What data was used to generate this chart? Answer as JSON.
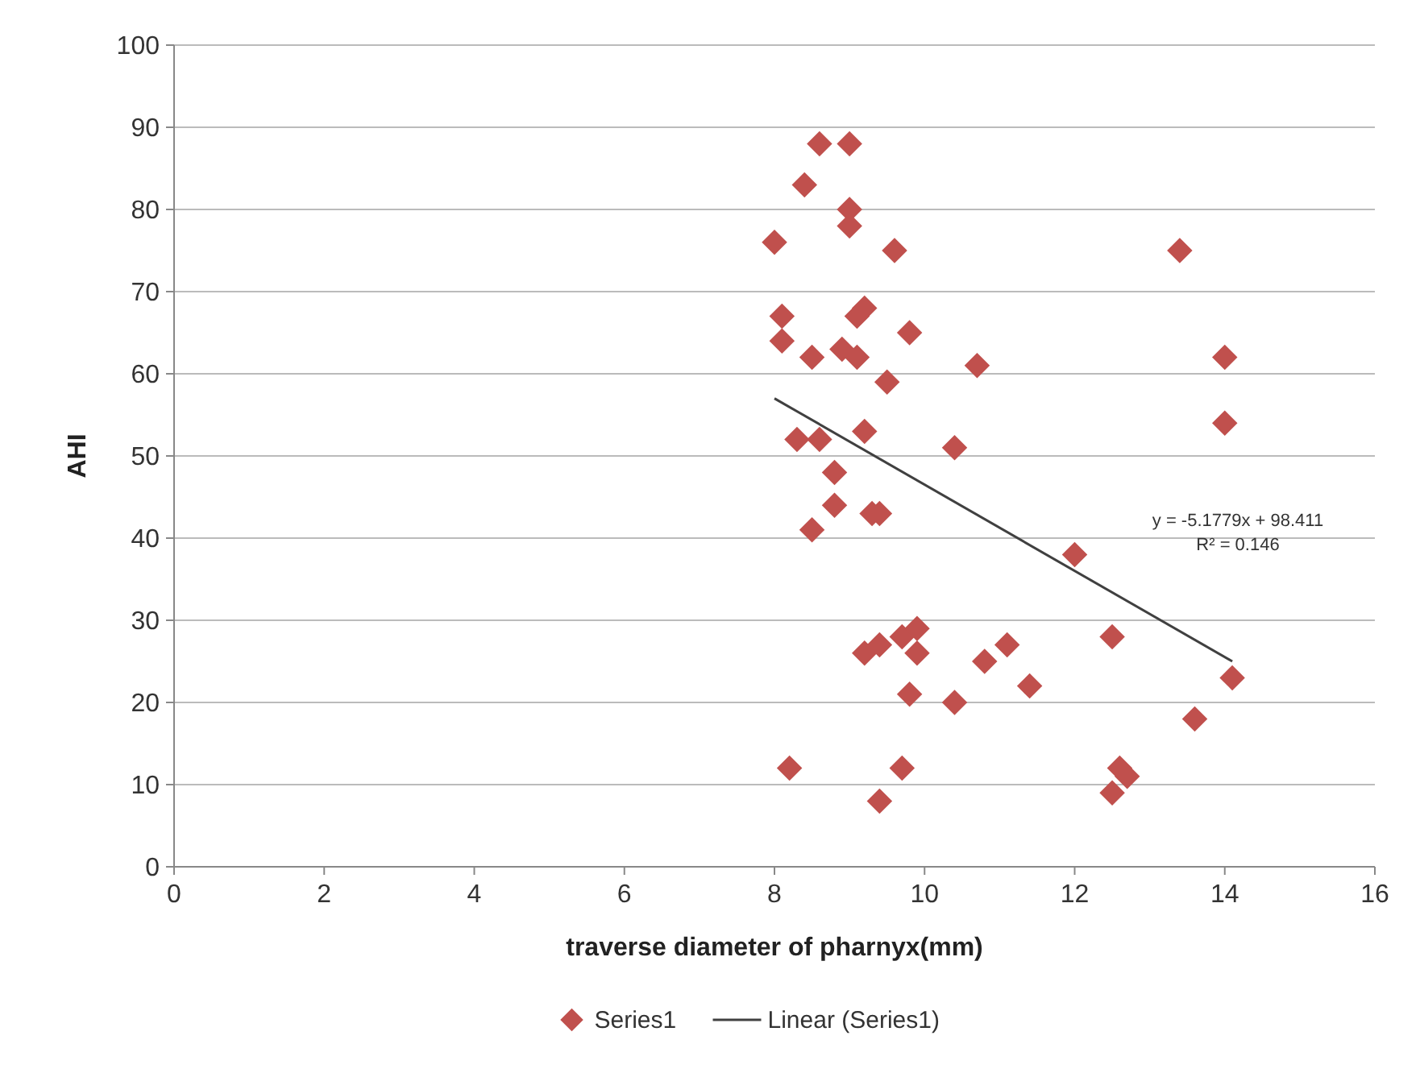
{
  "chart_data": {
    "type": "scatter",
    "xlabel": "traverse diameter of pharnyx(mm)",
    "ylabel": "AHI",
    "xlim": [
      0,
      16
    ],
    "xticks": [
      0,
      2,
      4,
      6,
      8,
      10,
      12,
      14,
      16
    ],
    "ylim": [
      0,
      100
    ],
    "yticks": [
      0,
      10,
      20,
      30,
      40,
      50,
      60,
      70,
      80,
      90,
      100
    ],
    "grid": "y",
    "legend": "bottom",
    "marker": "diamond",
    "series": [
      {
        "name": "Series1",
        "color": "#c0504d",
        "x": [
          8.0,
          8.1,
          8.1,
          8.2,
          8.3,
          8.4,
          8.5,
          8.5,
          8.6,
          8.6,
          8.8,
          8.8,
          8.9,
          9.0,
          9.0,
          9.0,
          9.1,
          9.1,
          9.2,
          9.2,
          9.2,
          9.3,
          9.4,
          9.4,
          9.4,
          9.5,
          9.6,
          9.7,
          9.7,
          9.8,
          9.8,
          9.9,
          9.9,
          10.4,
          10.4,
          10.7,
          10.8,
          11.1,
          11.4,
          12.0,
          12.5,
          12.5,
          12.6,
          12.7,
          13.4,
          13.6,
          14.0,
          14.0,
          14.1
        ],
        "values": [
          76,
          67,
          64,
          12,
          52,
          83,
          62,
          41,
          88,
          52,
          48,
          44,
          63,
          88,
          80,
          78,
          62,
          67,
          68,
          53,
          26,
          43,
          43,
          27,
          8,
          59,
          75,
          28,
          12,
          65,
          21,
          29,
          26,
          51,
          20,
          61,
          25,
          27,
          22,
          38,
          28,
          9,
          12,
          11,
          75,
          18,
          62,
          54,
          23
        ]
      },
      {
        "name": "Linear (Series1)",
        "type": "line",
        "color": "#404040",
        "marker": "none",
        "x": [
          8.0,
          14.1
        ],
        "values": [
          57,
          25
        ]
      }
    ],
    "annotations": [
      "y = -5.1779x + 98.411",
      "R² = 0.146"
    ]
  }
}
